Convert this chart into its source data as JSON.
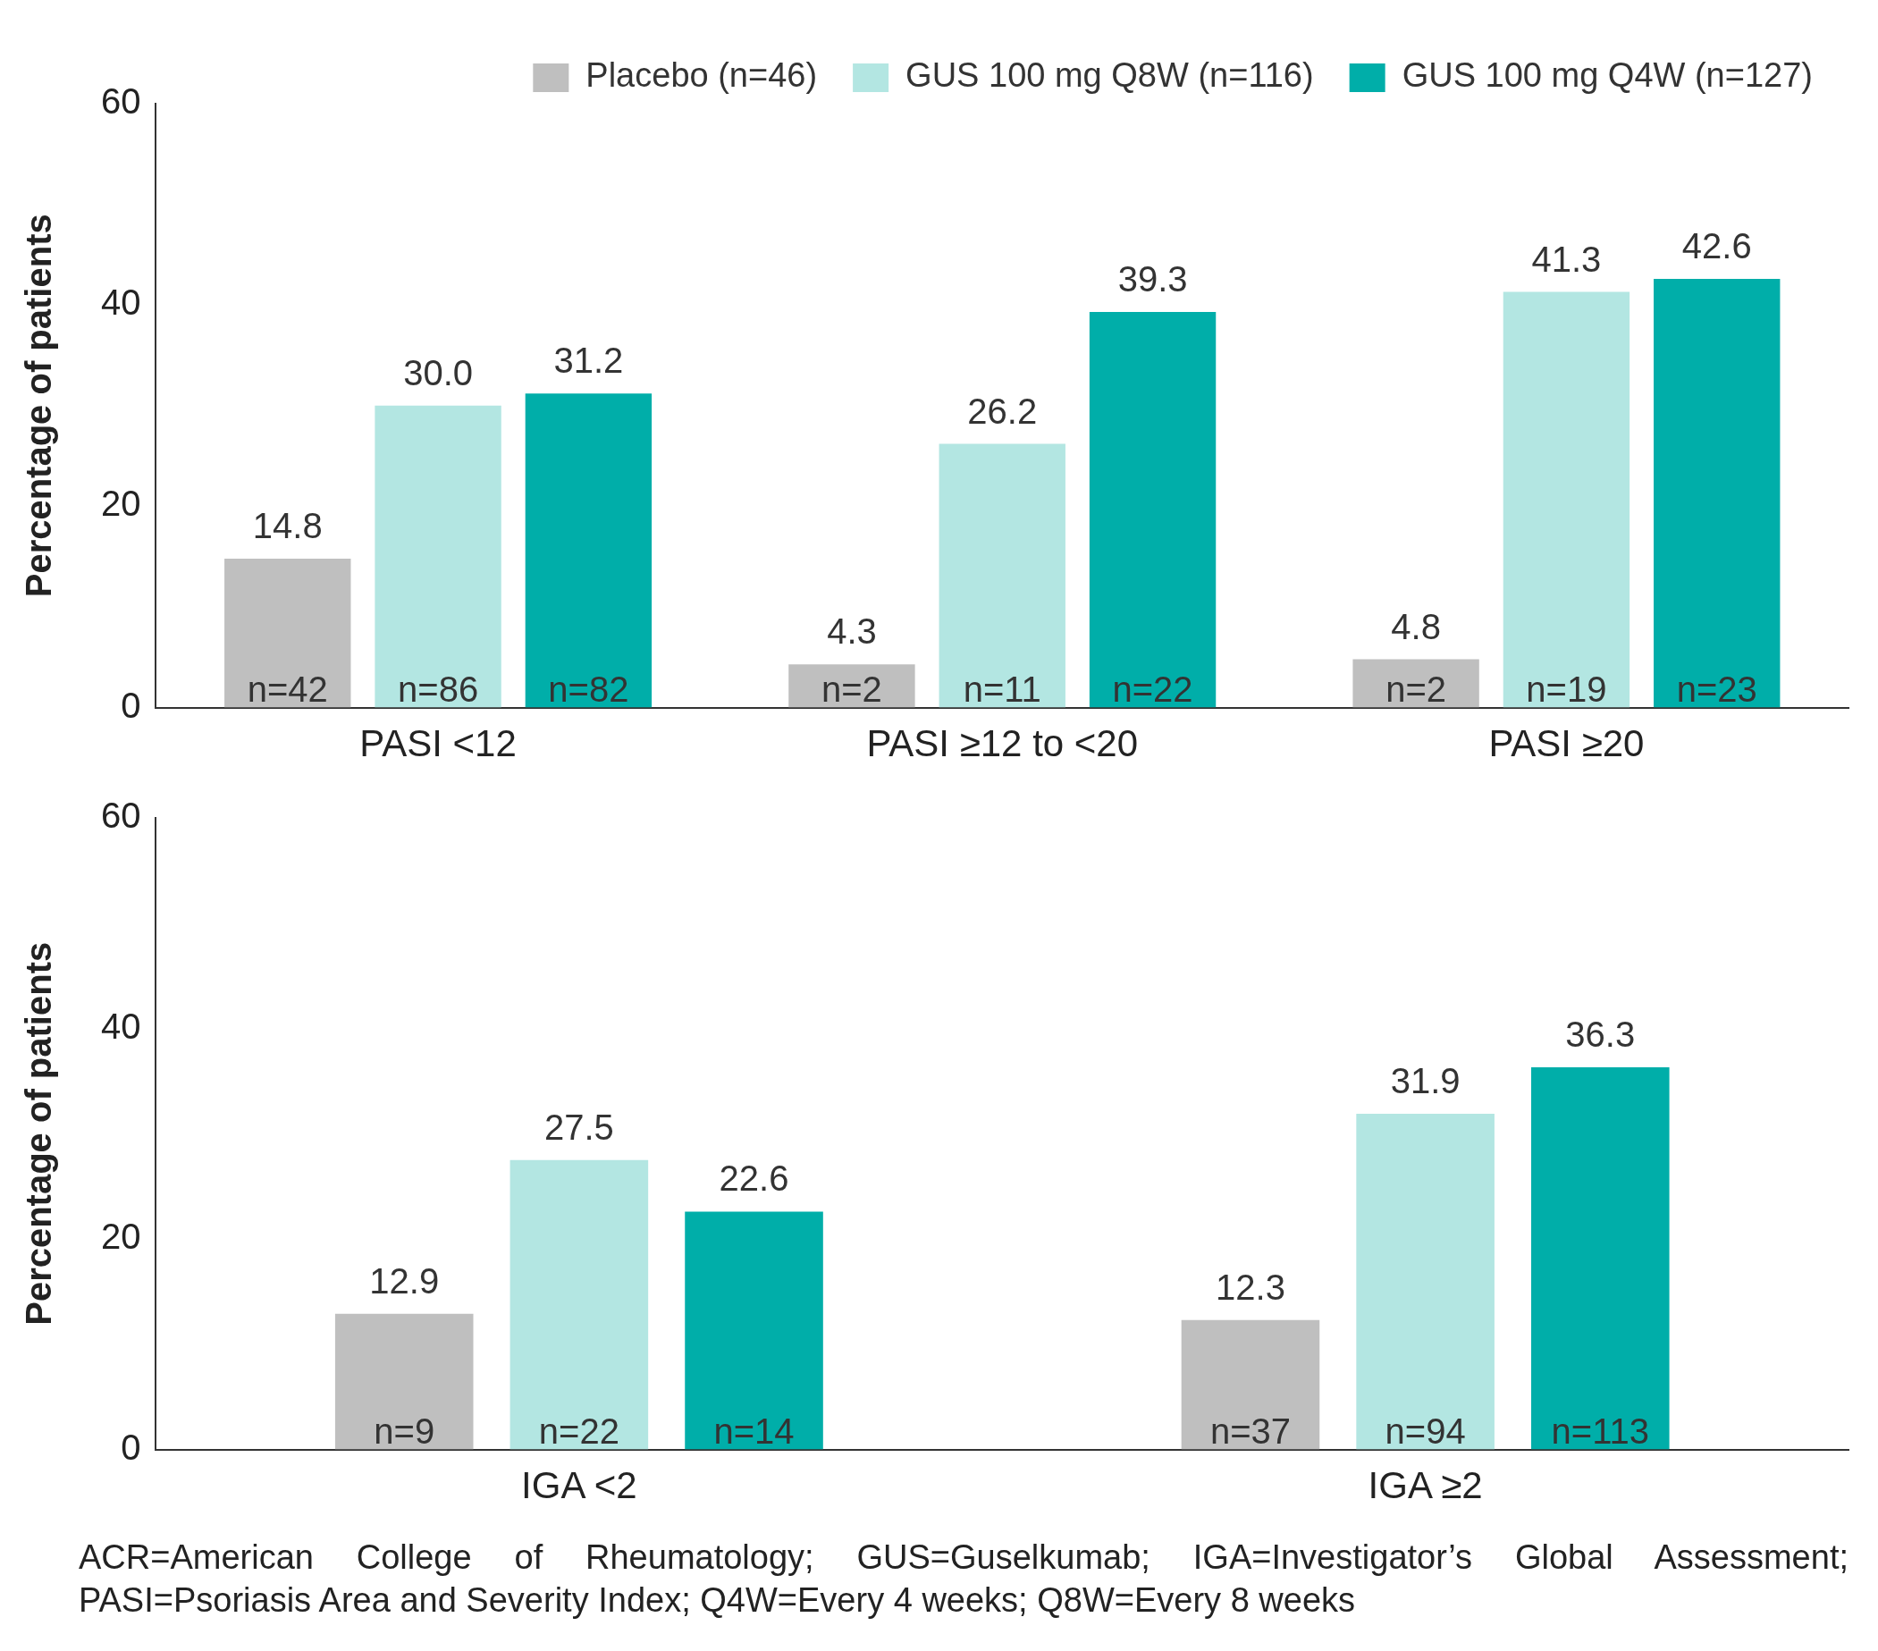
{
  "chart_data": [
    {
      "type": "bar",
      "categories": [
        "PASI <12",
        "PASI ≥12 to <20",
        "PASI ≥20"
      ],
      "ylabel": "Percentage of patients",
      "ylim": [
        0,
        60
      ],
      "yticks": [
        0,
        20,
        40,
        60
      ],
      "legend": "top",
      "grid": false,
      "series": [
        {
          "name": "Placebo (n=46)",
          "color": "#bfbfbf",
          "values": [
            14.8,
            4.3,
            4.8
          ],
          "value_labels": [
            "14.8",
            "4.3",
            "4.8"
          ]
        },
        {
          "name": "GUS 100 mg Q8W (n=116)",
          "color": "#b3e6e2",
          "values": [
            30.0,
            26.2,
            41.3
          ],
          "value_labels": [
            "30.0",
            "26.2",
            "41.3"
          ]
        },
        {
          "name": "GUS 100 mg Q4W (n=127)",
          "color": "#00aea9",
          "values": [
            31.2,
            39.3,
            42.6
          ],
          "value_labels": [
            "31.2",
            "39.3",
            "42.6"
          ]
        }
      ],
      "annotations": [
        "n=42",
        "n=86",
        "n=82",
        "n=2",
        "n=11",
        "n=22",
        "n=2",
        "n=19",
        "n=23"
      ]
    },
    {
      "type": "bar",
      "categories": [
        "IGA <2",
        "IGA ≥2"
      ],
      "ylabel": "Percentage of patients",
      "ylim": [
        0,
        60
      ],
      "yticks": [
        0,
        20,
        40,
        60
      ],
      "grid": false,
      "series": [
        {
          "color": "#bfbfbf",
          "values": [
            12.9,
            12.3
          ],
          "value_labels": [
            "12.9",
            "12.3"
          ]
        },
        {
          "color": "#b3e6e2",
          "values": [
            27.5,
            31.9
          ],
          "value_labels": [
            "27.5",
            "31.9"
          ]
        },
        {
          "color": "#00aea9",
          "values": [
            22.6,
            36.3
          ],
          "value_labels": [
            "22.6",
            "36.3"
          ]
        }
      ],
      "annotations": [
        "n=9",
        "n=22",
        "n=14",
        "n=37",
        "n=94",
        "n=113",
        "ACR=American College of Rheumatology; GUS=Guselkumab; IGA=Investigator’s Global Assessment; PASI=Psoriasis Area and Severity Index; Q4W=Every 4 weeks; Q8W=Every 8 weeks"
      ]
    }
  ]
}
